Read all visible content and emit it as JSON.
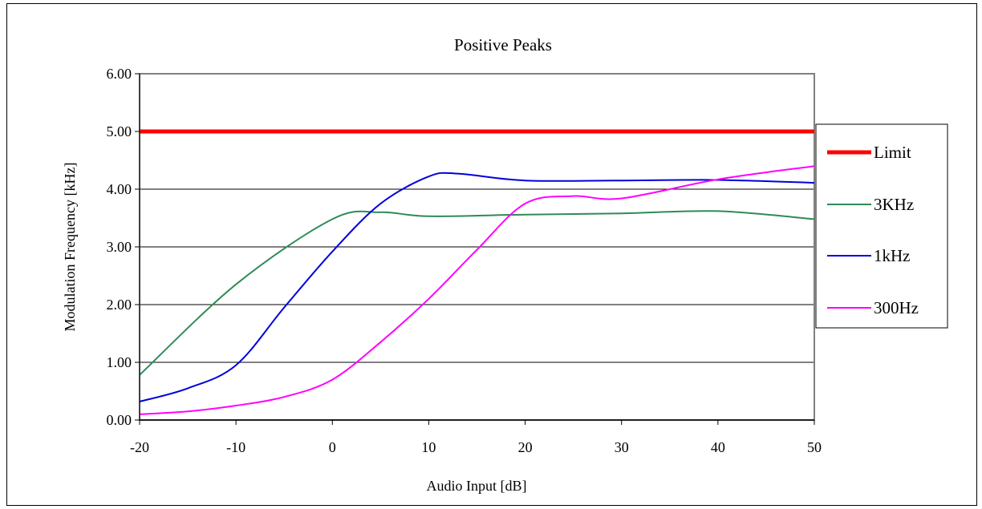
{
  "chart_data": {
    "type": "line",
    "title": "Positive Peaks",
    "xlabel": "Audio Input [dB]",
    "ylabel": "Modulation Frequency [kHz]",
    "xlim": [
      -20,
      50
    ],
    "ylim": [
      0,
      6
    ],
    "xticks": [
      -20,
      -10,
      0,
      10,
      20,
      30,
      40,
      50
    ],
    "yticks": [
      "0.00",
      "1.00",
      "2.00",
      "3.00",
      "4.00",
      "5.00",
      "6.00"
    ],
    "grid": "horizontal",
    "legend_position": "right",
    "series": [
      {
        "name": "Limit",
        "color": "#ff0000",
        "x": [
          -20,
          50
        ],
        "y": [
          5.0,
          5.0
        ]
      },
      {
        "name": "3KHz",
        "color": "#2e8b57",
        "x": [
          -20,
          -10,
          0,
          5,
          10,
          20,
          30,
          40,
          50
        ],
        "y": [
          0.78,
          2.35,
          3.48,
          3.6,
          3.53,
          3.56,
          3.58,
          3.62,
          3.48
        ]
      },
      {
        "name": "1kHz",
        "color": "#0000dd",
        "x": [
          -20,
          -15,
          -10,
          -5,
          0,
          5,
          10,
          13,
          20,
          30,
          40,
          50
        ],
        "y": [
          0.32,
          0.55,
          0.95,
          1.95,
          2.92,
          3.75,
          4.22,
          4.27,
          4.15,
          4.15,
          4.16,
          4.11
        ]
      },
      {
        "name": "300Hz",
        "color": "#ff00ff",
        "x": [
          -20,
          -15,
          -10,
          -5,
          0,
          5,
          10,
          15,
          20,
          25,
          30,
          40,
          50
        ],
        "y": [
          0.1,
          0.15,
          0.25,
          0.4,
          0.7,
          1.35,
          2.1,
          2.95,
          3.75,
          3.88,
          3.84,
          4.17,
          4.4
        ]
      }
    ]
  }
}
